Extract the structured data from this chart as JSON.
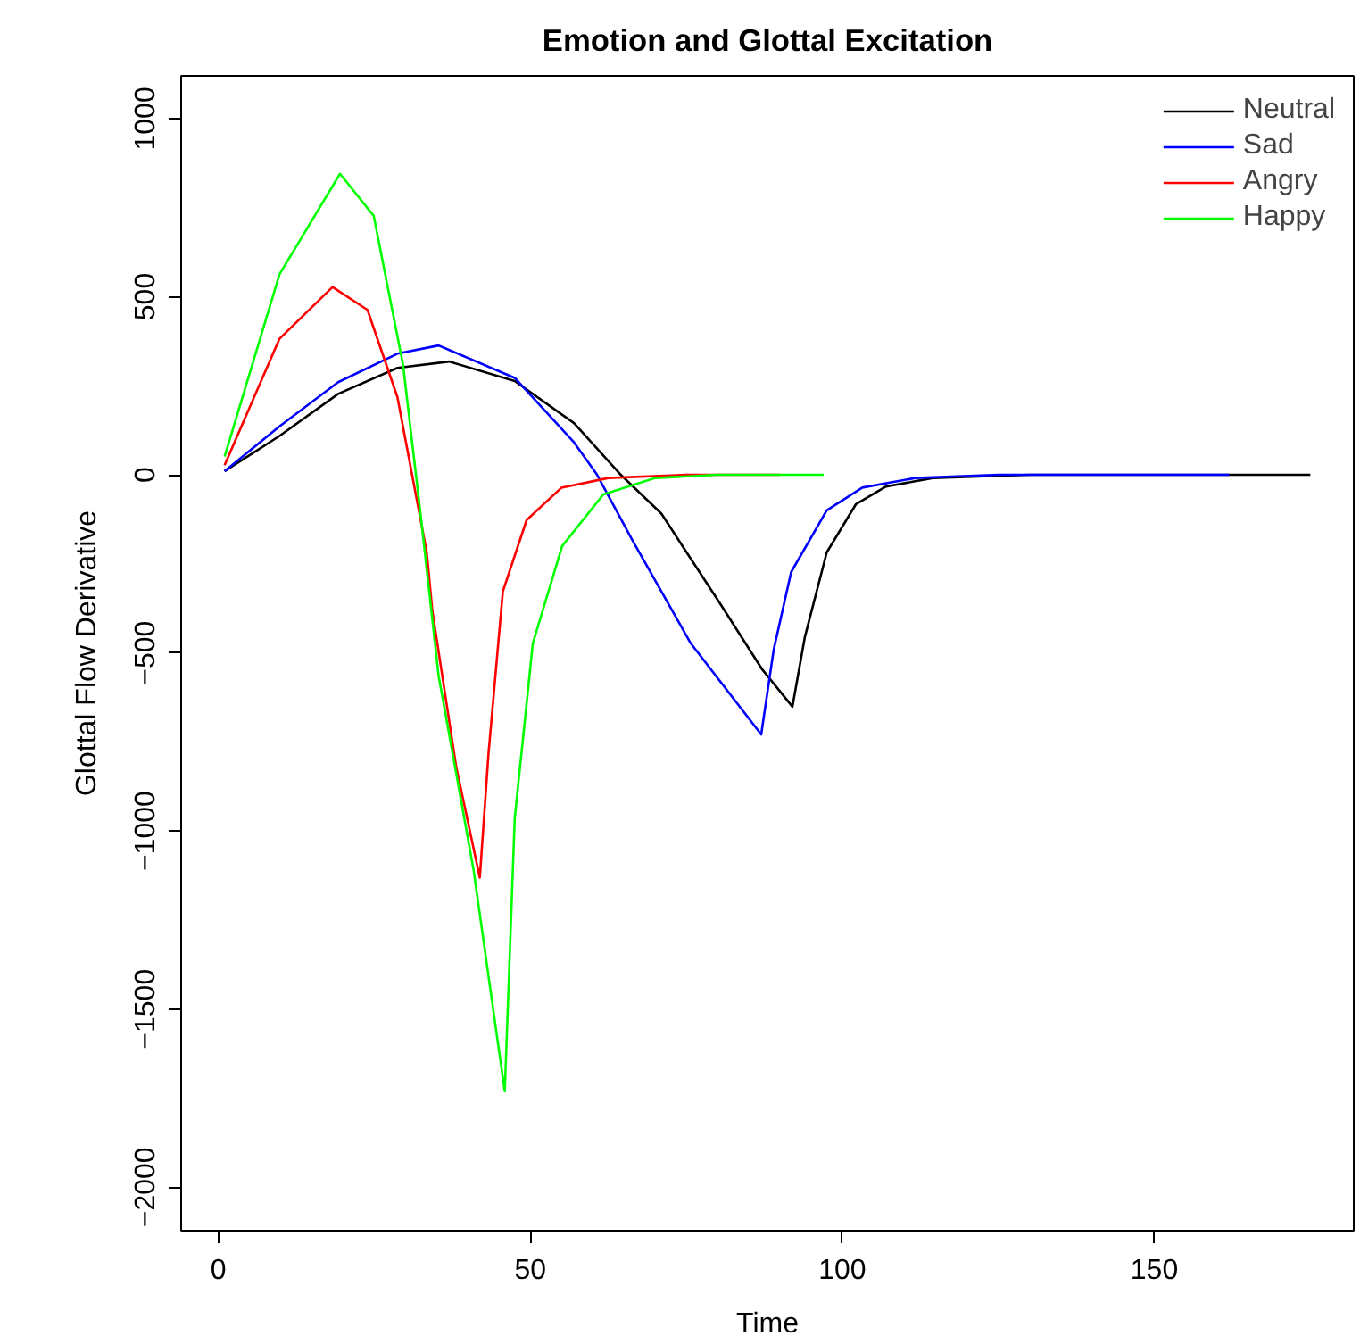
{
  "chart_data": {
    "type": "line",
    "title": "Emotion and Glottal Excitation",
    "xlabel": "Time",
    "ylabel": "Glottal Flow Derivative",
    "xlim": [
      -5.96,
      181.96
    ],
    "ylim": [
      -2122,
      1120
    ],
    "xticks": [
      0,
      50,
      100,
      150
    ],
    "yticks": [
      -2000,
      -1500,
      -1000,
      -500,
      0,
      500,
      1000
    ],
    "grid": false,
    "legend": "top right",
    "marker": "none",
    "line_style": "solid",
    "series": [
      {
        "name": "Neutral",
        "color": "#000000",
        "x": [
          1,
          9.8,
          19.2,
          28.7,
          37,
          47.5,
          57,
          64.5,
          71,
          80.5,
          87.1,
          92,
          94,
          97.5,
          102.2,
          107,
          114.5,
          130,
          175
        ],
        "values": [
          10,
          109,
          227,
          300,
          318,
          263,
          145,
          0,
          -109,
          -364,
          -545,
          -651,
          -455,
          -218,
          -82,
          -33,
          -9,
          0,
          0
        ]
      },
      {
        "name": "Sad",
        "color": "#0000ff",
        "x": [
          1,
          9.8,
          19.2,
          28.7,
          35.3,
          47.5,
          57,
          60.7,
          66.3,
          75.7,
          87,
          89,
          91.8,
          97.5,
          103.2,
          111.7,
          125,
          162
        ],
        "values": [
          10,
          136,
          260,
          340,
          363,
          272,
          91,
          0,
          -182,
          -473,
          -729,
          -491,
          -273,
          -100,
          -36,
          -9,
          0,
          0
        ]
      },
      {
        "name": "Angry",
        "color": "#ff0000",
        "x": [
          1,
          9.8,
          18.3,
          23.9,
          28.7,
          33.4,
          34.3,
          38.1,
          41.9,
          43.3,
          45.6,
          49.4,
          55,
          62.5,
          75,
          90
        ],
        "values": [
          27,
          382,
          527,
          463,
          218,
          -218,
          -382,
          -818,
          -1131,
          -782,
          -327,
          -127,
          -36,
          -9,
          0,
          0
        ]
      },
      {
        "name": "Happy",
        "color": "#00ff00",
        "x": [
          1,
          9.8,
          19.5,
          24.9,
          29.6,
          32.4,
          35.3,
          40.9,
          45.9,
          47.5,
          50.4,
          55.1,
          61.7,
          70,
          80,
          97
        ],
        "values": [
          51,
          563,
          845,
          727,
          309,
          -109,
          -564,
          -1109,
          -1731,
          -964,
          -473,
          -200,
          -55,
          -9,
          0,
          0
        ]
      }
    ]
  }
}
